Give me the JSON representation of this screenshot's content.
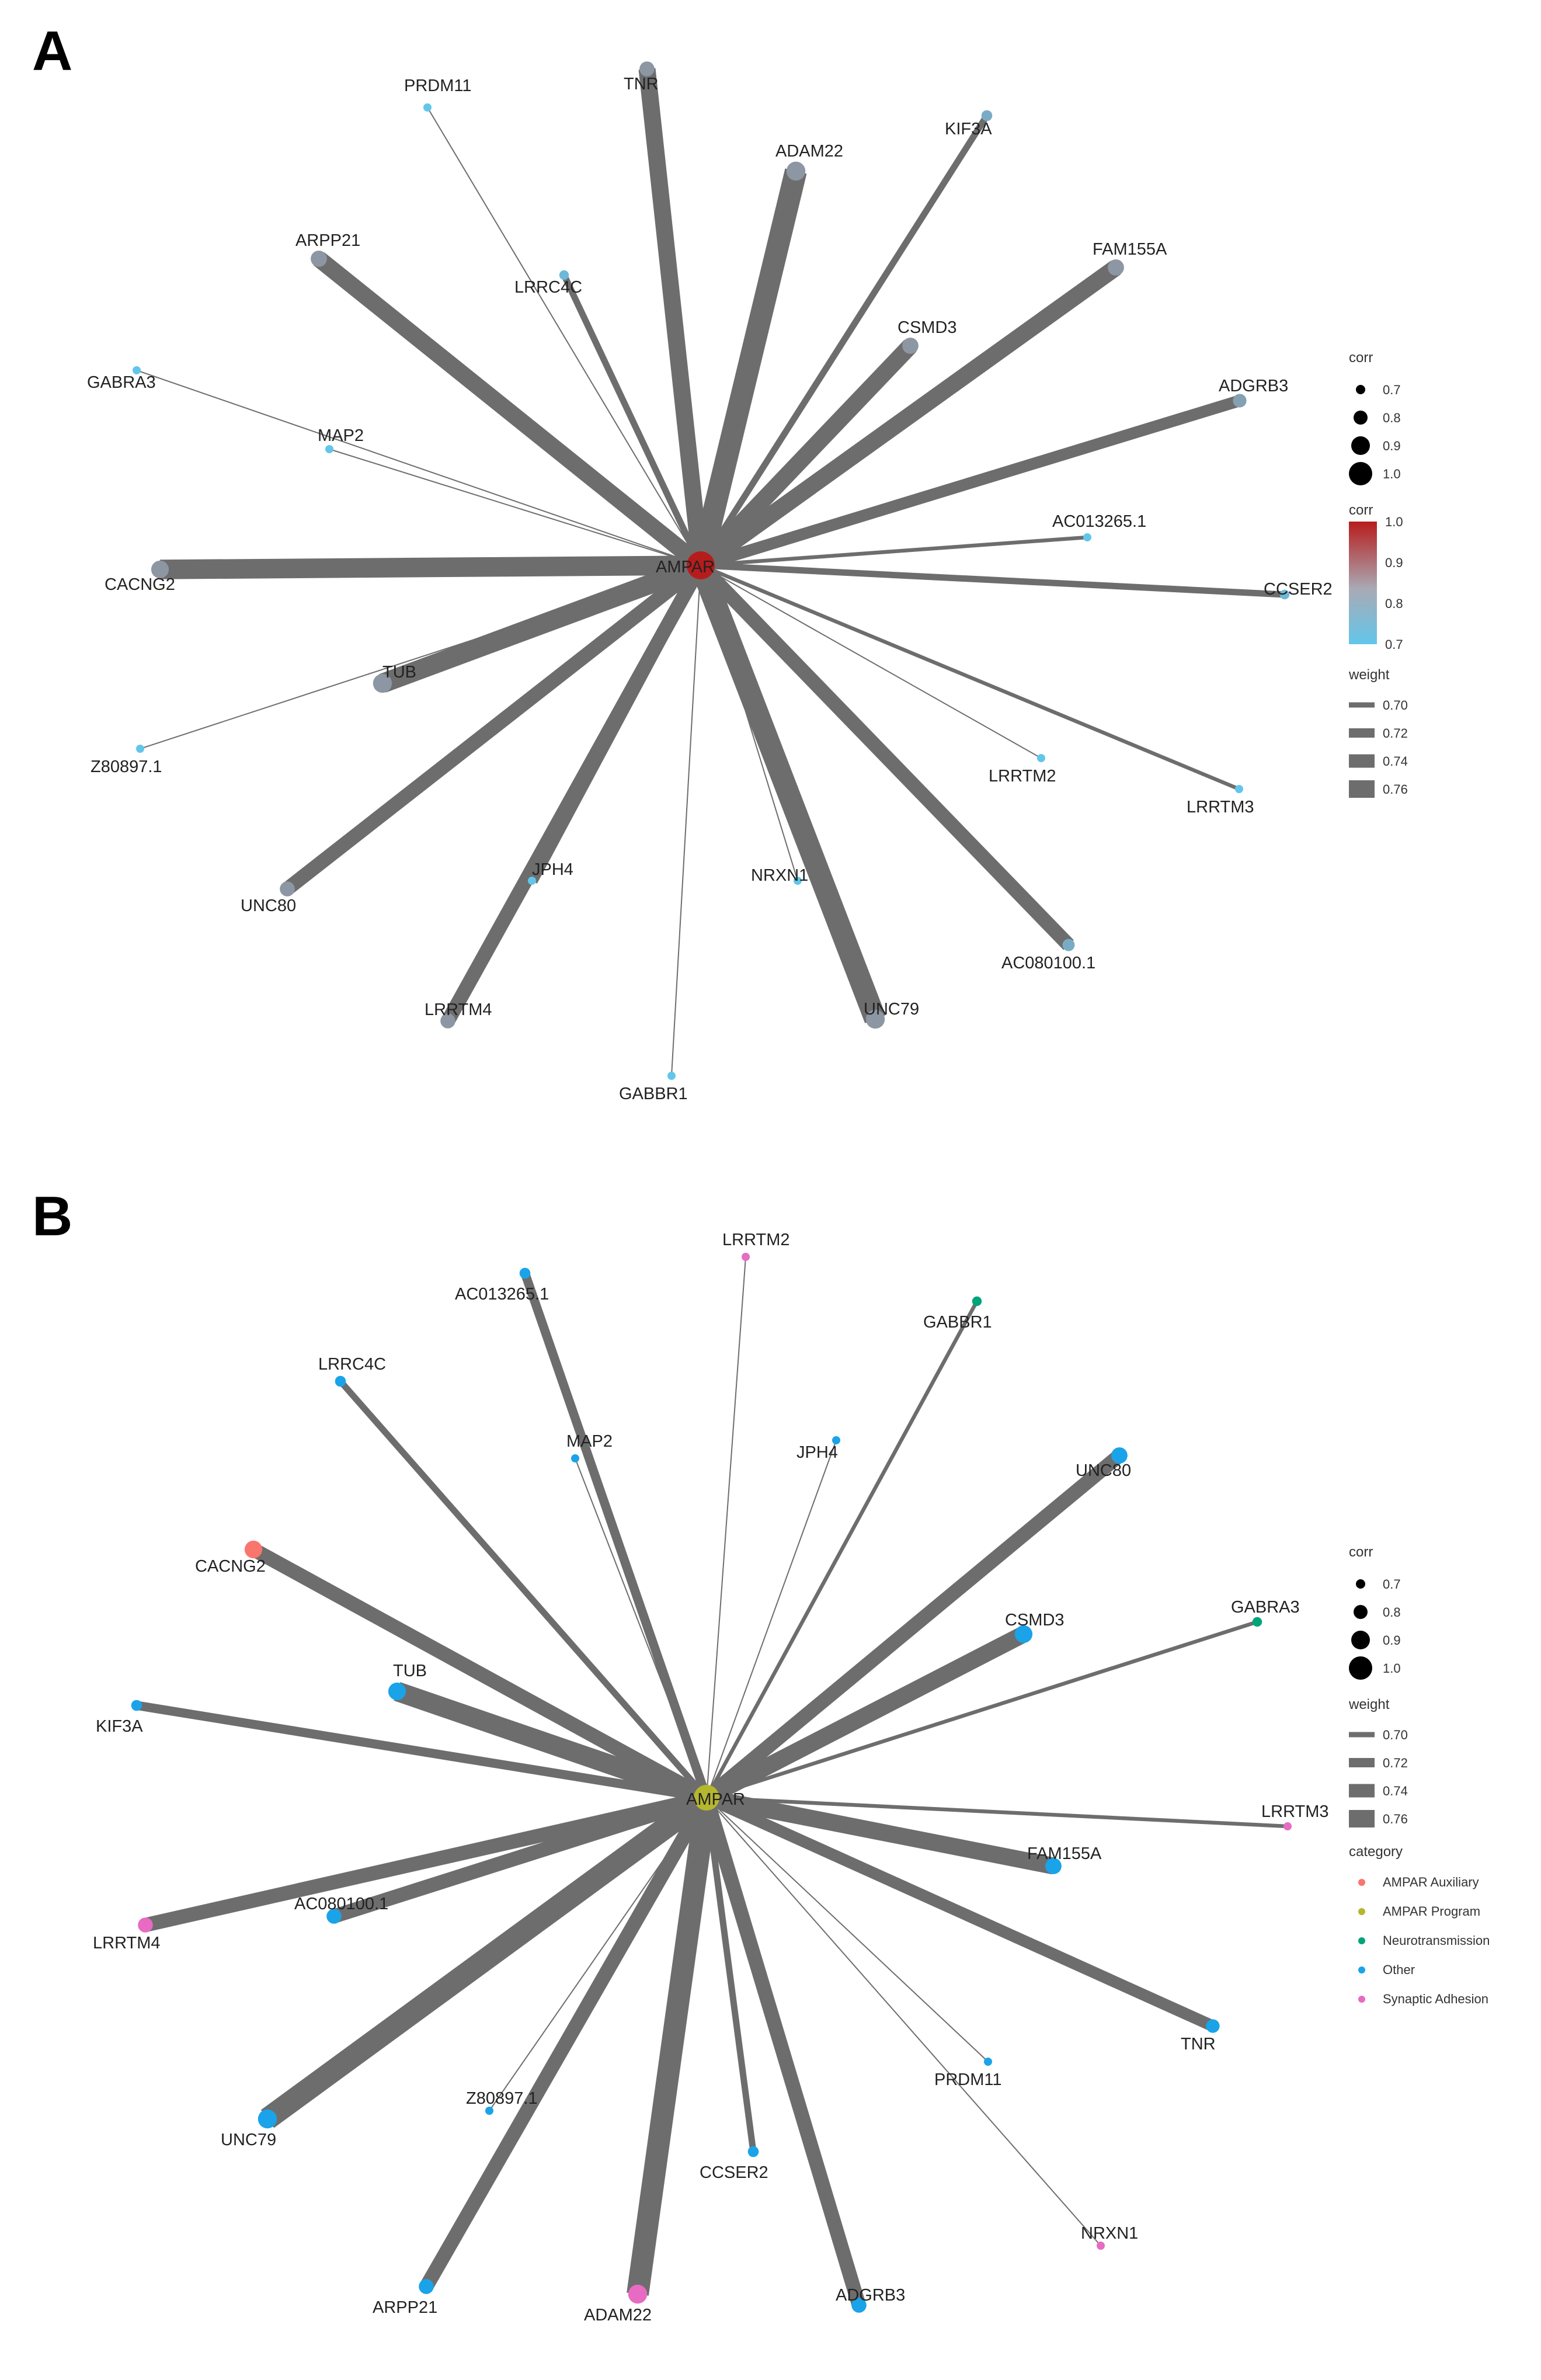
{
  "panels": [
    {
      "letter": "A",
      "hub": {
        "label": "AMPAR",
        "color": "#b71c1c"
      },
      "nodes": [
        {
          "label": "TNR",
          "corr": 0.75,
          "weight": 0.76,
          "colorCorr": 0.75
        },
        {
          "label": "PRDM11",
          "corr": 0.7,
          "weight": 0.7,
          "colorCorr": 0.7
        },
        {
          "label": "ADAM22",
          "corr": 0.78,
          "weight": 0.78,
          "colorCorr": 0.76
        },
        {
          "label": "KIF3A",
          "corr": 0.72,
          "weight": 0.72,
          "colorCorr": 0.72
        },
        {
          "label": "FAM155A",
          "corr": 0.76,
          "weight": 0.76,
          "colorCorr": 0.75
        },
        {
          "label": "ARPP21",
          "corr": 0.76,
          "weight": 0.76,
          "colorCorr": 0.75
        },
        {
          "label": "LRRC4C",
          "corr": 0.71,
          "weight": 0.72,
          "colorCorr": 0.71
        },
        {
          "label": "CSMD3",
          "corr": 0.76,
          "weight": 0.76,
          "colorCorr": 0.75
        },
        {
          "label": "ADGRB3",
          "corr": 0.74,
          "weight": 0.74,
          "colorCorr": 0.73
        },
        {
          "label": "GABRA3",
          "corr": 0.7,
          "weight": 0.7,
          "colorCorr": 0.7
        },
        {
          "label": "MAP2",
          "corr": 0.7,
          "weight": 0.7,
          "colorCorr": 0.7
        },
        {
          "label": "AC013265.1",
          "corr": 0.7,
          "weight": 0.71,
          "colorCorr": 0.7
        },
        {
          "label": "CACNG2",
          "corr": 0.77,
          "weight": 0.77,
          "colorCorr": 0.76
        },
        {
          "label": "CCSER2",
          "corr": 0.71,
          "weight": 0.72,
          "colorCorr": 0.71
        },
        {
          "label": "TUB",
          "corr": 0.78,
          "weight": 0.77,
          "colorCorr": 0.76
        },
        {
          "label": "Z80897.1",
          "corr": 0.7,
          "weight": 0.7,
          "colorCorr": 0.7
        },
        {
          "label": "LRRTM2",
          "corr": 0.7,
          "weight": 0.7,
          "colorCorr": 0.7
        },
        {
          "label": "LRRTM3",
          "corr": 0.7,
          "weight": 0.71,
          "colorCorr": 0.7
        },
        {
          "label": "UNC80",
          "corr": 0.75,
          "weight": 0.75,
          "colorCorr": 0.74
        },
        {
          "label": "JPH4",
          "corr": 0.7,
          "weight": 0.74,
          "colorCorr": 0.7
        },
        {
          "label": "NRXN1",
          "corr": 0.7,
          "weight": 0.7,
          "colorCorr": 0.7
        },
        {
          "label": "AC080100.1",
          "corr": 0.73,
          "weight": 0.75,
          "colorCorr": 0.72
        },
        {
          "label": "LRRTM4",
          "corr": 0.75,
          "weight": 0.75,
          "colorCorr": 0.74
        },
        {
          "label": "UNC79",
          "corr": 0.78,
          "weight": 0.78,
          "colorCorr": 0.76
        },
        {
          "label": "GABBR1",
          "corr": 0.7,
          "weight": 0.7,
          "colorCorr": 0.7
        }
      ],
      "legend": {
        "corr_title": "corr",
        "corr_sizes": [
          "0.7",
          "0.8",
          "0.9",
          "1.0"
        ],
        "color_title": "corr",
        "color_ticks": [
          "1.0",
          "0.9",
          "0.8",
          "0.7"
        ],
        "color_high": "#b71c1c",
        "color_low": "#62c6ea",
        "weight_title": "weight",
        "weights": [
          "0.70",
          "0.72",
          "0.74",
          "0.76"
        ]
      }
    },
    {
      "letter": "B",
      "hub": {
        "label": "AMPAR",
        "category": "AMPAR Program"
      },
      "nodes": [
        {
          "label": "LRRTM2",
          "corr": 0.7,
          "weight": 0.7,
          "category": "Synaptic Adhesion"
        },
        {
          "label": "AC013265.1",
          "corr": 0.72,
          "weight": 0.73,
          "category": "Other"
        },
        {
          "label": "GABBR1",
          "corr": 0.71,
          "weight": 0.71,
          "category": "Neurotransmission"
        },
        {
          "label": "LRRC4C",
          "corr": 0.72,
          "weight": 0.72,
          "category": "Other"
        },
        {
          "label": "MAP2",
          "corr": 0.7,
          "weight": 0.7,
          "category": "Other"
        },
        {
          "label": "JPH4",
          "corr": 0.7,
          "weight": 0.7,
          "category": "Other"
        },
        {
          "label": "UNC80",
          "corr": 0.76,
          "weight": 0.75,
          "category": "Other"
        },
        {
          "label": "CACNG2",
          "corr": 0.77,
          "weight": 0.75,
          "category": "AMPAR Auxiliary"
        },
        {
          "label": "CSMD3",
          "corr": 0.77,
          "weight": 0.76,
          "category": "Other"
        },
        {
          "label": "GABRA3",
          "corr": 0.71,
          "weight": 0.71,
          "category": "Neurotransmission"
        },
        {
          "label": "TUB",
          "corr": 0.77,
          "weight": 0.77,
          "category": "Other"
        },
        {
          "label": "KIF3A",
          "corr": 0.72,
          "weight": 0.73,
          "category": "Other"
        },
        {
          "label": "LRRTM3",
          "corr": 0.7,
          "weight": 0.71,
          "category": "Synaptic Adhesion"
        },
        {
          "label": "FAM155A",
          "corr": 0.76,
          "weight": 0.76,
          "category": "Other"
        },
        {
          "label": "AC080100.1",
          "corr": 0.75,
          "weight": 0.75,
          "category": "Other"
        },
        {
          "label": "LRRTM4",
          "corr": 0.75,
          "weight": 0.75,
          "category": "Synaptic Adhesion"
        },
        {
          "label": "TNR",
          "corr": 0.74,
          "weight": 0.74,
          "category": "Other"
        },
        {
          "label": "UNC79",
          "corr": 0.78,
          "weight": 0.78,
          "category": "Other"
        },
        {
          "label": "Z80897.1",
          "corr": 0.7,
          "weight": 0.7,
          "category": "Other"
        },
        {
          "label": "PRDM11",
          "corr": 0.7,
          "weight": 0.7,
          "category": "Other"
        },
        {
          "label": "CCSER2",
          "corr": 0.72,
          "weight": 0.72,
          "category": "Other"
        },
        {
          "label": "NRXN1",
          "corr": 0.7,
          "weight": 0.7,
          "category": "Synaptic Adhesion"
        },
        {
          "label": "ARPP21",
          "corr": 0.75,
          "weight": 0.75,
          "category": "Other"
        },
        {
          "label": "ADAM22",
          "corr": 0.78,
          "weight": 0.78,
          "category": "Synaptic Adhesion"
        },
        {
          "label": "ADGRB3",
          "corr": 0.75,
          "weight": 0.75,
          "category": "Other"
        }
      ],
      "legend": {
        "corr_title": "corr",
        "corr_sizes": [
          "0.7",
          "0.8",
          "0.9",
          "1.0"
        ],
        "weight_title": "weight",
        "weights": [
          "0.70",
          "0.72",
          "0.74",
          "0.76"
        ],
        "category_title": "category",
        "categories": [
          {
            "label": "AMPAR Auxiliary",
            "color": "#f8766d"
          },
          {
            "label": "AMPAR Program",
            "color": "#b5b72e"
          },
          {
            "label": "Neurotransmission",
            "color": "#00a37a"
          },
          {
            "label": "Other",
            "color": "#1aa3e8"
          },
          {
            "label": "Synaptic Adhesion",
            "color": "#e76bc3"
          }
        ]
      }
    }
  ]
}
